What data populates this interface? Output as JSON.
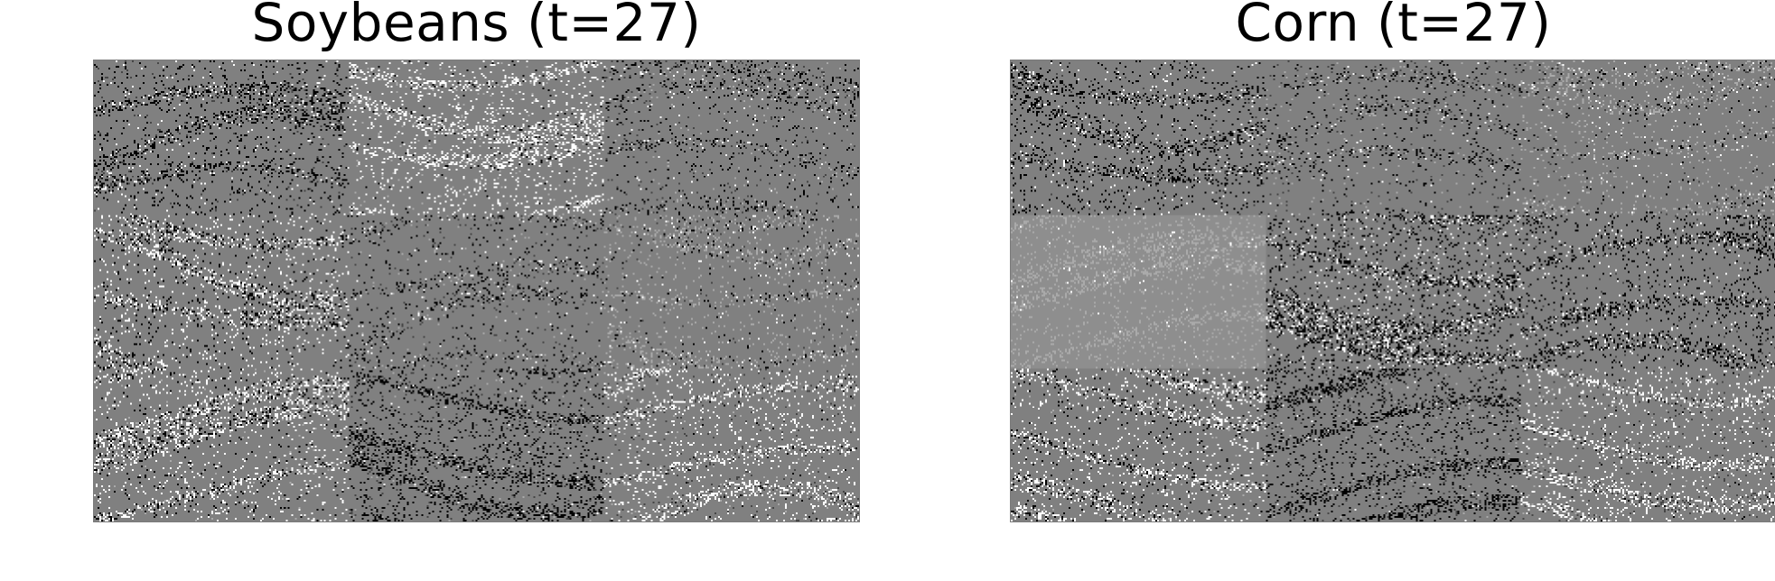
{
  "panels": [
    {
      "title": "Soybeans (t=27)",
      "image": "grayscale 3x3 grid of saliency/attribution tiles over a mid-gray field with horizontal stripe textures",
      "colors": {
        "background": "#808080",
        "dark": "#000000",
        "light": "#ffffff",
        "dim": "#505050",
        "pale": "#a8a8a8"
      },
      "tiles": [
        [
          "mixed-dark",
          "mostly-light",
          "sparse-dark"
        ],
        [
          "mixed-light-band",
          "sparse-dark",
          "sparse-pale"
        ],
        [
          "mixed-light",
          "dark-band",
          "light-band"
        ]
      ]
    },
    {
      "title": "Corn (t=27)",
      "image": "grayscale 3x3 grid of saliency/attribution tiles over a mid-gray field with horizontal stripe textures",
      "colors": {
        "background": "#808080",
        "dark": "#000000",
        "light": "#ffffff",
        "dim": "#505050",
        "pale": "#a8a8a8"
      },
      "tiles": [
        [
          "mixed-dark",
          "sparse-dark",
          "sparse-pale"
        ],
        [
          "pale-texture",
          "mixed-dark-band",
          "mixed-dark"
        ],
        [
          "mixed-light",
          "dark-band",
          "light-band"
        ]
      ]
    }
  ]
}
